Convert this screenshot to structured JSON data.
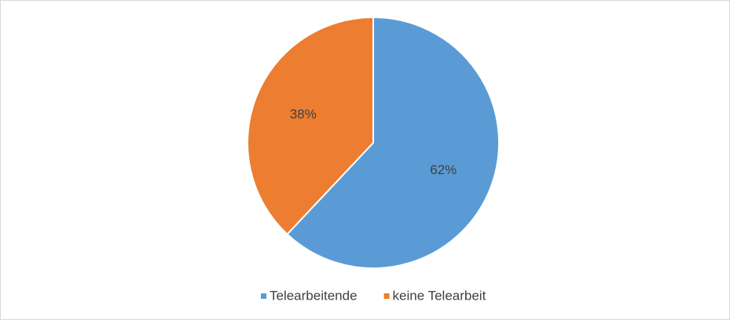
{
  "chart_data": {
    "type": "pie",
    "categories": [
      "Telearbeitende",
      "keine Telearbeit"
    ],
    "values": [
      62,
      38
    ],
    "value_labels": [
      "62%",
      "38%"
    ],
    "colors": [
      "#5b9bd5",
      "#ed7d31"
    ],
    "legend": "bottom"
  }
}
